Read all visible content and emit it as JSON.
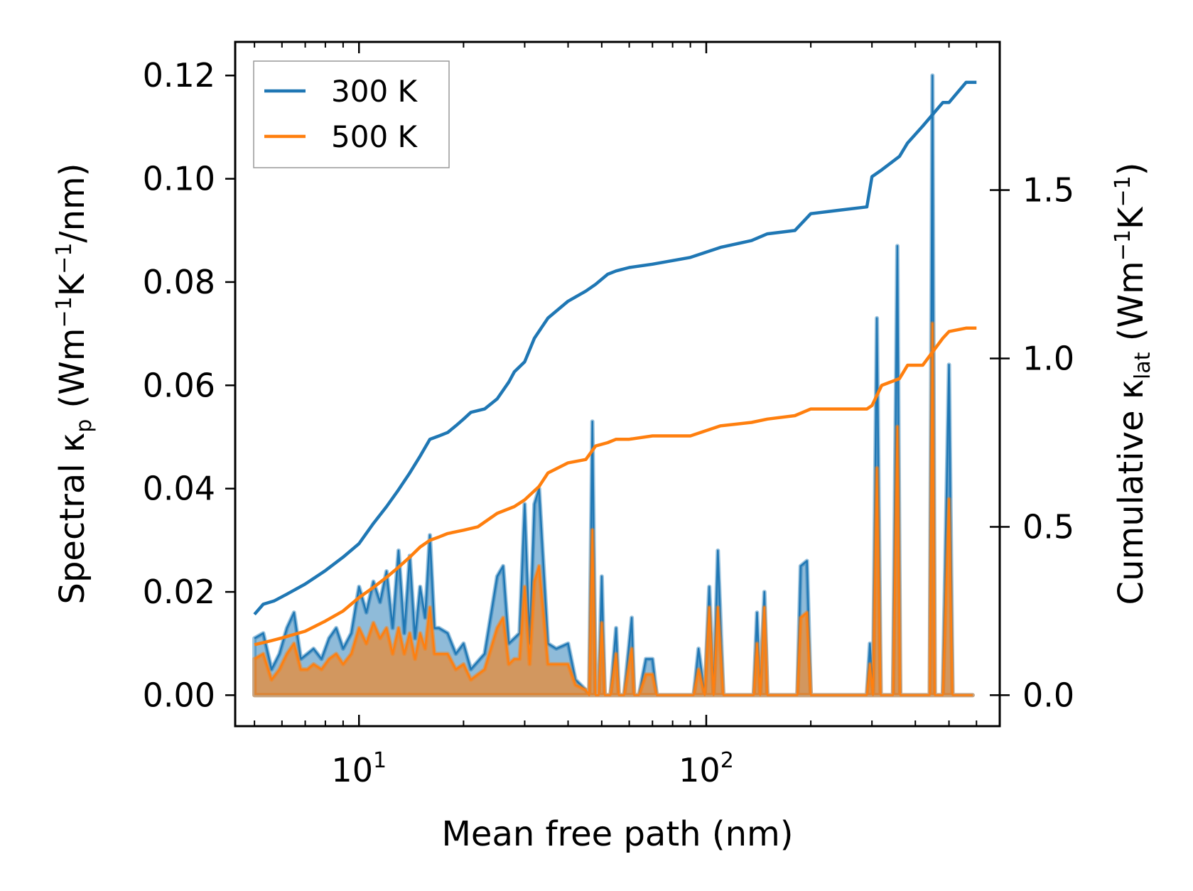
{
  "chart_data": {
    "type": "line",
    "xscale": "log",
    "xlabel": "Mean free path (nm)",
    "ylabel_left": {
      "prefix": "Spectral κ",
      "sub": "p",
      "units_open": " (Wm",
      "sup1": "−1",
      "mid": "K",
      "sup2": "−1",
      "units_close": "/nm)"
    },
    "ylabel_right": {
      "prefix": "Cumulative κ",
      "sub": "lat",
      "units_open": " (Wm",
      "sup1": "−1",
      "mid": "K",
      "sup2": "−1",
      "units_close": ")"
    },
    "xlim": [
      4.4,
      700
    ],
    "ylim_left": [
      -0.006,
      0.1265
    ],
    "ylim_right": [
      -0.092,
      1.94
    ],
    "x_major_ticks": [
      {
        "value": 10,
        "base": "10",
        "exp": "1"
      },
      {
        "value": 100,
        "base": "10",
        "exp": "2"
      }
    ],
    "y_left_ticks": [
      {
        "value": 0.0,
        "label": "0.00"
      },
      {
        "value": 0.02,
        "label": "0.02"
      },
      {
        "value": 0.04,
        "label": "0.04"
      },
      {
        "value": 0.06,
        "label": "0.06"
      },
      {
        "value": 0.08,
        "label": "0.08"
      },
      {
        "value": 0.1,
        "label": "0.10"
      },
      {
        "value": 0.12,
        "label": "0.12"
      }
    ],
    "y_right_ticks": [
      {
        "value": 0.0,
        "label": "0.0"
      },
      {
        "value": 0.5,
        "label": "0.5"
      },
      {
        "value": 1.0,
        "label": "1.0"
      },
      {
        "value": 1.5,
        "label": "1.5"
      }
    ],
    "legend": {
      "placement": "top-left",
      "entries": [
        {
          "label": "300 K",
          "color": "#1f77b4"
        },
        {
          "label": "500 K",
          "color": "#ff7f0e"
        }
      ]
    },
    "series_cumulative": [
      {
        "name": "300 K",
        "axis": "right",
        "color": "#1f77b4",
        "x": [
          5,
          5.3,
          5.7,
          6.2,
          7,
          8,
          9,
          10,
          11,
          12,
          13,
          14,
          15,
          16,
          17,
          18,
          19,
          20,
          21,
          23,
          25,
          27,
          28,
          30,
          32,
          35,
          40,
          45,
          48,
          52,
          55,
          60,
          70,
          90,
          110,
          135,
          150,
          180,
          200,
          240,
          290,
          300,
          320,
          360,
          380,
          420,
          480,
          500,
          560,
          600
        ],
        "y": [
          0.24,
          0.27,
          0.28,
          0.3,
          0.33,
          0.37,
          0.41,
          0.45,
          0.51,
          0.56,
          0.61,
          0.66,
          0.71,
          0.76,
          0.77,
          0.78,
          0.8,
          0.82,
          0.84,
          0.85,
          0.88,
          0.93,
          0.96,
          0.99,
          1.06,
          1.12,
          1.17,
          1.2,
          1.22,
          1.25,
          1.26,
          1.27,
          1.28,
          1.3,
          1.33,
          1.35,
          1.37,
          1.38,
          1.43,
          1.44,
          1.45,
          1.54,
          1.56,
          1.6,
          1.64,
          1.69,
          1.76,
          1.76,
          1.82,
          1.82
        ]
      },
      {
        "name": "500 K",
        "axis": "right",
        "color": "#ff7f0e",
        "x": [
          5,
          5.5,
          6,
          7,
          8,
          9,
          10,
          11,
          12,
          13,
          14,
          15,
          16,
          17,
          18,
          20,
          22,
          25,
          28,
          30,
          33,
          35,
          40,
          45,
          48,
          52,
          55,
          60,
          70,
          90,
          110,
          135,
          150,
          180,
          200,
          240,
          290,
          300,
          320,
          360,
          380,
          420,
          480,
          500,
          560,
          600
        ],
        "y": [
          0.15,
          0.16,
          0.17,
          0.19,
          0.22,
          0.25,
          0.29,
          0.32,
          0.35,
          0.38,
          0.41,
          0.44,
          0.46,
          0.47,
          0.48,
          0.49,
          0.5,
          0.54,
          0.56,
          0.58,
          0.62,
          0.66,
          0.69,
          0.7,
          0.74,
          0.75,
          0.76,
          0.76,
          0.77,
          0.77,
          0.8,
          0.81,
          0.82,
          0.83,
          0.85,
          0.85,
          0.85,
          0.86,
          0.92,
          0.94,
          0.98,
          0.98,
          1.06,
          1.08,
          1.09,
          1.09
        ]
      }
    ],
    "series_spectral": [
      {
        "name": "300 K",
        "axis": "left",
        "color": "#1f77b4",
        "x": [
          5,
          5.3,
          5.6,
          5.9,
          6.2,
          6.5,
          6.8,
          7.1,
          7.4,
          7.8,
          8.2,
          8.6,
          9.0,
          9.5,
          10,
          10.5,
          11,
          11.5,
          12,
          12.5,
          13,
          13.5,
          14,
          14.5,
          15,
          15.5,
          16,
          16.5,
          17,
          18,
          19,
          20,
          21,
          23,
          25,
          26,
          27,
          28,
          29,
          30,
          31,
          32,
          33,
          35,
          37,
          40,
          42,
          45,
          46,
          47,
          48,
          49,
          50,
          51,
          53,
          55,
          56,
          58,
          61,
          62,
          64,
          67,
          68,
          70,
          72,
          74,
          92,
          95,
          99,
          102,
          105,
          108,
          112,
          115,
          137,
          140,
          143,
          147,
          150,
          153,
          183,
          187,
          195,
          200,
          205,
          290,
          296,
          302,
          310,
          318,
          330,
          345,
          355,
          362,
          372,
          440,
          448,
          455,
          462,
          470,
          480,
          500,
          512,
          525,
          540,
          555,
          570,
          585
        ],
        "y": [
          0.011,
          0.012,
          0.005,
          0.008,
          0.013,
          0.016,
          0.007,
          0.008,
          0.009,
          0.007,
          0.011,
          0.013,
          0.009,
          0.012,
          0.021,
          0.016,
          0.022,
          0.018,
          0.024,
          0.013,
          0.028,
          0.012,
          0.027,
          0.011,
          0.021,
          0.015,
          0.031,
          0.013,
          0.013,
          0.012,
          0.008,
          0.01,
          0.005,
          0.008,
          0.023,
          0.025,
          0.01,
          0.011,
          0.012,
          0.037,
          0.01,
          0.037,
          0.04,
          0.01,
          0.009,
          0.01,
          0.003,
          0.001,
          0.0,
          0.053,
          0.0,
          0.0,
          0.023,
          0.0,
          0.0,
          0.013,
          0.0,
          0.0,
          0.015,
          0.0,
          0.0,
          0.007,
          0.007,
          0.007,
          0.0,
          0.0,
          0.0,
          0.009,
          0.0,
          0.021,
          0.0,
          0.028,
          0.0,
          0.0,
          0.0,
          0.016,
          0.0,
          0.02,
          0.0,
          0.0,
          0.0,
          0.025,
          0.026,
          0.0,
          0.0,
          0.0,
          0.01,
          0.0,
          0.073,
          0.0,
          0.0,
          0.0,
          0.087,
          0.0,
          0.0,
          0.0,
          0.12,
          0.0,
          0.0,
          0.0,
          0.0,
          0.064,
          0.0,
          0.0,
          0.0,
          0.0,
          0.0,
          0.0
        ]
      },
      {
        "name": "500 K",
        "axis": "left",
        "color": "#ff7f0e",
        "x": [
          5,
          5.3,
          5.6,
          5.9,
          6.2,
          6.5,
          6.8,
          7.1,
          7.4,
          7.8,
          8.2,
          8.6,
          9.0,
          9.5,
          10,
          10.5,
          11,
          11.5,
          12,
          12.5,
          13,
          13.5,
          14,
          14.5,
          15,
          15.5,
          16,
          16.5,
          17,
          18,
          19,
          20,
          21,
          23,
          25,
          26,
          27,
          28,
          29,
          30,
          31,
          32,
          33,
          35,
          37,
          40,
          42,
          45,
          46,
          47,
          48,
          49,
          50,
          51,
          53,
          55,
          56,
          58,
          61,
          62,
          64,
          67,
          68,
          70,
          72,
          74,
          92,
          95,
          99,
          102,
          105,
          108,
          112,
          115,
          137,
          140,
          143,
          147,
          150,
          153,
          183,
          187,
          195,
          200,
          205,
          290,
          296,
          302,
          310,
          318,
          330,
          345,
          355,
          362,
          372,
          440,
          448,
          455,
          462,
          470,
          480,
          500,
          512,
          525,
          540,
          555,
          570,
          585
        ],
        "y": [
          0.007,
          0.008,
          0.003,
          0.005,
          0.008,
          0.01,
          0.005,
          0.005,
          0.006,
          0.005,
          0.007,
          0.008,
          0.006,
          0.008,
          0.013,
          0.01,
          0.014,
          0.011,
          0.013,
          0.008,
          0.013,
          0.008,
          0.012,
          0.007,
          0.012,
          0.009,
          0.017,
          0.008,
          0.008,
          0.008,
          0.005,
          0.006,
          0.003,
          0.005,
          0.013,
          0.015,
          0.006,
          0.007,
          0.007,
          0.021,
          0.006,
          0.022,
          0.025,
          0.006,
          0.006,
          0.006,
          0.002,
          0.001,
          0.0,
          0.032,
          0.0,
          0.0,
          0.014,
          0.0,
          0.0,
          0.008,
          0.0,
          0.0,
          0.009,
          0.0,
          0.0,
          0.004,
          0.004,
          0.004,
          0.0,
          0.0,
          0.0,
          0.005,
          0.0,
          0.017,
          0.0,
          0.017,
          0.0,
          0.0,
          0.0,
          0.01,
          0.0,
          0.017,
          0.0,
          0.0,
          0.0,
          0.015,
          0.016,
          0.0,
          0.0,
          0.0,
          0.006,
          0.0,
          0.044,
          0.0,
          0.0,
          0.0,
          0.052,
          0.0,
          0.0,
          0.0,
          0.072,
          0.0,
          0.0,
          0.0,
          0.0,
          0.038,
          0.0,
          0.0,
          0.0,
          0.0,
          0.0,
          0.0
        ]
      }
    ]
  }
}
